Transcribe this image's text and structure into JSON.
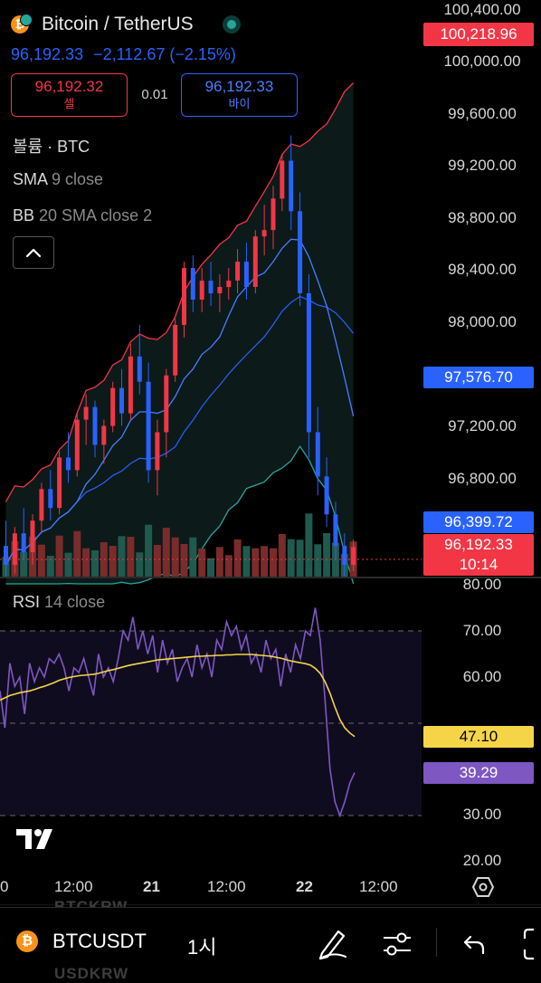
{
  "header": {
    "symbol_title": "Bitcoin / TetherUS",
    "price": "96,192.33",
    "change": "−2,112.67 (−2.15%)",
    "sell_price": "96,192.32",
    "sell_label": "셀",
    "spread": "0.01",
    "buy_price": "96,192.33",
    "buy_label": "바이"
  },
  "indicators": {
    "volume": "볼륨 · BTC",
    "sma_name": "SMA",
    "sma_params": "9 close",
    "bb_name": "BB",
    "bb_params": "20 SMA close 2",
    "rsi_name": "RSI",
    "rsi_params": "14 close"
  },
  "price_axis": [
    "100,400.00",
    "100,000.00",
    "99,600.00",
    "99,200.00",
    "98,800.00",
    "98,400.00",
    "98,000.00",
    "97,200.00",
    "96,800.00"
  ],
  "price_tags": {
    "bb_upper": "100,218.96",
    "sma": "97,576.70",
    "bb_basis": "96,399.72",
    "last": "96,192.33",
    "countdown": "10:14"
  },
  "rsi_axis": [
    "80.00",
    "70.00",
    "60.00",
    "30.00",
    "20.00"
  ],
  "rsi_tags": {
    "rsi_ma": "47.10",
    "rsi": "39.29"
  },
  "time_axis": [
    "0",
    "12:00",
    "21",
    "12:00",
    "22",
    "12:00"
  ],
  "bottom": {
    "ticker": "BTCUSDT",
    "interval": "1시",
    "ghost_top": "BTCKRW",
    "ghost_bottom": "USDKRW"
  },
  "colors": {
    "up": "#f23645",
    "down": "#2962ff",
    "vol_up": "#7a2b2b",
    "vol_down": "#1f5a4f",
    "bb_upper": "#f23645",
    "bb_lower": "#26a69a",
    "bb_basis": "#2962ff",
    "sma": "#4a7dff",
    "rsi": "#7e57c2",
    "rsi_ma": "#f5d547",
    "buy_tag": "#2962ff",
    "sell_tag": "#f23645",
    "rsi_tag_ma": "#f5d547",
    "rsi_tag": "#7e57c2"
  },
  "icons": [
    "tradingview-logo",
    "bitcoin-logo",
    "chevron-up-icon",
    "settings-hexagon-icon",
    "pen-icon",
    "sliders-icon",
    "undo-icon",
    "fullscreen-icon",
    "market-open-dot"
  ],
  "chart_data": {
    "type": "candlestick",
    "title": "Bitcoin / TetherUS",
    "price_range": [
      95900,
      100450
    ],
    "candles": [
      [
        96200,
        96400,
        95950,
        96050
      ],
      [
        96050,
        96350,
        95980,
        96300
      ],
      [
        96300,
        96500,
        96100,
        96150
      ],
      [
        96150,
        96450,
        96050,
        96400
      ],
      [
        96400,
        96700,
        96300,
        96650
      ],
      [
        96650,
        96800,
        96400,
        96500
      ],
      [
        96500,
        96950,
        96450,
        96900
      ],
      [
        96900,
        97100,
        96700,
        96800
      ],
      [
        96800,
        97250,
        96750,
        97200
      ],
      [
        97200,
        97400,
        97000,
        97300
      ],
      [
        97300,
        97350,
        96900,
        97000
      ],
      [
        97000,
        97200,
        96850,
        97150
      ],
      [
        97150,
        97500,
        97100,
        97450
      ],
      [
        97450,
        97600,
        97150,
        97250
      ],
      [
        97250,
        97800,
        97200,
        97700
      ],
      [
        97700,
        97950,
        97400,
        97500
      ],
      [
        97500,
        97650,
        96700,
        96800
      ],
      [
        96800,
        97200,
        96600,
        97100
      ],
      [
        97100,
        97600,
        96900,
        97550
      ],
      [
        97550,
        98000,
        97500,
        97950
      ],
      [
        97950,
        98450,
        97850,
        98400
      ],
      [
        98400,
        98500,
        98050,
        98150
      ],
      [
        98150,
        98400,
        98050,
        98300
      ],
      [
        98300,
        98450,
        98100,
        98200
      ],
      [
        98200,
        98350,
        98050,
        98250
      ],
      [
        98250,
        98400,
        98150,
        98300
      ],
      [
        98300,
        98550,
        98200,
        98450
      ],
      [
        98450,
        98600,
        98150,
        98250
      ],
      [
        98250,
        98700,
        98200,
        98650
      ],
      [
        98650,
        98900,
        98500,
        98700
      ],
      [
        98700,
        99050,
        98550,
        98950
      ],
      [
        98950,
        99300,
        98850,
        99250
      ],
      [
        99250,
        99450,
        98700,
        98850
      ],
      [
        98850,
        99000,
        98100,
        98200
      ],
      [
        98200,
        98350,
        96900,
        97100
      ],
      [
        97100,
        97300,
        96600,
        96750
      ],
      [
        96750,
        96900,
        96350,
        96450
      ],
      [
        96450,
        96550,
        96100,
        96200
      ],
      [
        96200,
        96300,
        95950,
        96050
      ],
      [
        96050,
        96250,
        96000,
        96192.33
      ]
    ],
    "volume_label": "볼륨 · BTC",
    "rsi": {
      "label": "RSI 14 close",
      "levels": [
        70,
        50,
        30
      ],
      "range": [
        20,
        80
      ],
      "rsi_values": [
        57,
        49,
        63,
        58,
        60,
        52,
        63,
        59,
        62,
        60,
        64,
        63,
        65,
        62,
        57,
        62,
        61,
        64,
        60,
        56,
        65,
        60,
        62,
        59,
        64,
        70,
        68,
        73,
        66,
        70,
        65,
        69,
        61,
        68,
        63,
        66,
        59,
        62,
        64,
        60,
        67,
        62,
        65,
        60,
        68,
        66,
        72,
        69,
        71,
        66,
        69,
        63,
        65,
        61,
        68,
        64,
        66,
        58,
        65,
        61,
        67,
        64,
        70,
        69,
        75,
        68,
        55,
        40,
        33,
        30,
        33,
        37,
        39.29
      ],
      "ma_values": [
        55,
        55.5,
        56,
        56.3,
        56.6,
        56.8,
        57,
        57.3,
        57.7,
        58,
        58.4,
        58.8,
        59.3,
        59.6,
        59.9,
        60.1,
        60.3,
        60.4,
        60.5,
        60.6,
        60.8,
        61.1,
        61.4,
        61.6,
        61.9,
        62.2,
        62.5,
        62.7,
        62.9,
        63.1,
        63.3,
        63.5,
        63.7,
        63.8,
        63.9,
        64,
        64.1,
        64.2,
        64.3,
        64.4,
        64.5,
        64.5,
        64.6,
        64.6,
        64.7,
        64.7,
        64.8,
        64.8,
        64.9,
        64.9,
        64.9,
        64.9,
        64.8,
        64.7,
        64.6,
        64.5,
        64.3,
        64.1,
        63.8,
        63.5,
        63.3,
        63.1,
        62.9,
        62.6,
        61.9,
        60.8,
        59,
        56.5,
        53.5,
        50.8,
        49,
        47.9,
        47.1
      ]
    }
  }
}
